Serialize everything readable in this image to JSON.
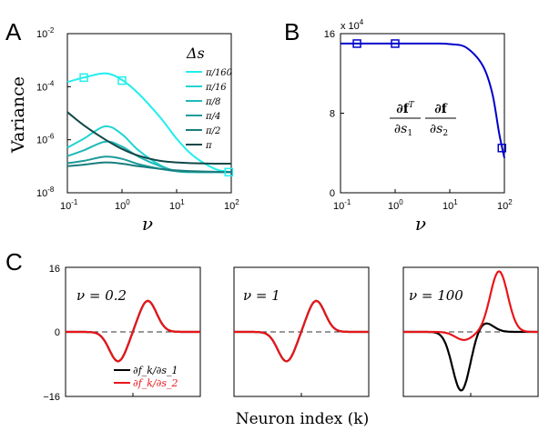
{
  "panel_labels": [
    "A",
    "B",
    "C"
  ],
  "panelA": {
    "ylabel": "Variance",
    "xlabel": "ν",
    "legend_title": "Δs",
    "legend": [
      "π/160",
      "π/16",
      "π/8",
      "π/4",
      "π/2",
      "π"
    ],
    "x_ticks": [
      {
        "base": "10",
        "exp": "-1"
      },
      {
        "base": "10",
        "exp": "0"
      },
      {
        "base": "10",
        "exp": "1"
      },
      {
        "base": "10",
        "exp": "2"
      }
    ],
    "y_ticks": [
      {
        "base": "10",
        "exp": "-8"
      },
      {
        "base": "10",
        "exp": "-6"
      },
      {
        "base": "10",
        "exp": "-4"
      },
      {
        "base": "10",
        "exp": "-2"
      }
    ]
  },
  "panelB": {
    "xlabel": "ν",
    "scale_base": "x 10",
    "scale_exp": "4",
    "y_ticks": [
      "0",
      "8",
      "16"
    ],
    "x_ticks": [
      {
        "base": "10",
        "exp": "-1"
      },
      {
        "base": "10",
        "exp": "0"
      },
      {
        "base": "10",
        "exp": "1"
      },
      {
        "base": "10",
        "exp": "2"
      }
    ],
    "annotation": {
      "num1_bold": "∂f",
      "num1_sup": "T",
      "den1": "∂s",
      "den1_sub": "1",
      "num2_bold": "∂f",
      "den2": "∂s",
      "den2_sub": "2"
    }
  },
  "panelC": {
    "xlabel": "Neuron index (k)",
    "y_ticks": [
      "16",
      "0",
      "−16"
    ],
    "subplot_labels": [
      "ν = 0.2",
      "ν = 1",
      "ν = 100"
    ],
    "legend": [
      "∂f_k/∂s_1",
      "∂f_k/∂s_2"
    ]
  },
  "colors": {
    "cyan_ramp": [
      "#22eeee",
      "#22d3d3",
      "#20b8b8",
      "#1e9a9a",
      "#1a7d7d",
      "#104848"
    ],
    "blue": "#0000cc",
    "black": "#000000",
    "red": "#e8161a"
  },
  "chart_data": [
    {
      "panel": "A",
      "type": "line",
      "x_scale": "log",
      "y_scale": "log",
      "xlim": [
        0.1,
        100
      ],
      "ylim": [
        1e-08,
        0.01
      ],
      "x": [
        0.1,
        0.2,
        0.5,
        1,
        2,
        5,
        10,
        20,
        50,
        100
      ],
      "series": [
        {
          "name": "π/160",
          "values": [
            0.00015,
            0.00022,
            0.00032,
            0.00018,
            5.5e-05,
            7e-06,
            1.1e-06,
            2.5e-07,
            8e-08,
            6e-08
          ]
        },
        {
          "name": "π/16",
          "values": [
            5e-07,
            1.1e-06,
            3.2e-06,
            1.6e-06,
            4e-07,
            1.1e-07,
            6.5e-08,
            6e-08,
            6e-08,
            6e-08
          ]
        },
        {
          "name": "π/8",
          "values": [
            2.4e-07,
            4e-07,
            8.5e-07,
            5.5e-07,
            2.3e-07,
            1e-07,
            6.5e-08,
            6e-08,
            6e-08,
            6e-08
          ]
        },
        {
          "name": "π/4",
          "values": [
            1.3e-07,
            1.6e-07,
            2.3e-07,
            1.9e-07,
            1.2e-07,
            8e-08,
            6.5e-08,
            6.2e-08,
            6e-08,
            6e-08
          ]
        },
        {
          "name": "π/2",
          "values": [
            1e-07,
            1.15e-07,
            1.4e-07,
            1.25e-07,
            1e-07,
            8e-08,
            7e-08,
            6.5e-08,
            6.2e-08,
            6e-08
          ]
        },
        {
          "name": "π",
          "values": [
            1.1e-05,
            3.5e-06,
            1e-06,
            4.5e-07,
            2.5e-07,
            1.6e-07,
            1.4e-07,
            1.3e-07,
            1.25e-07,
            1.25e-07
          ]
        }
      ],
      "markers": [
        {
          "x": 0.2,
          "y": 0.00022
        },
        {
          "x": 1,
          "y": 0.00017
        },
        {
          "x": 90,
          "y": 6e-08
        }
      ]
    },
    {
      "panel": "B",
      "type": "line",
      "x_scale": "log",
      "xlim": [
        0.1,
        100
      ],
      "ylim": [
        0,
        160000
      ],
      "x": [
        0.1,
        0.2,
        0.5,
        1,
        2,
        5,
        10,
        20,
        40,
        60,
        80,
        100
      ],
      "values": [
        150000,
        150000,
        150000,
        150000,
        150000,
        150000,
        149500,
        146000,
        128000,
        100000,
        60000,
        35000
      ],
      "markers": [
        {
          "x": 0.2,
          "y": 150000
        },
        {
          "x": 1,
          "y": 150000
        },
        {
          "x": 90,
          "y": 45000
        }
      ]
    },
    {
      "panel": "C",
      "type": "line",
      "ylim": [
        -16,
        16
      ],
      "subplots": [
        {
          "label": "ν = 0.2",
          "series": [
            {
              "name": "∂f_k/∂s_1",
              "peaks": [
                {
                  "pos": 0.39,
                  "amp": -7.3
                },
                {
                  "pos": 0.61,
                  "amp": 7.7
                }
              ]
            },
            {
              "name": "∂f_k/∂s_2",
              "peaks": [
                {
                  "pos": 0.39,
                  "amp": -7.3
                },
                {
                  "pos": 0.61,
                  "amp": 7.7
                }
              ]
            }
          ]
        },
        {
          "label": "ν = 1",
          "series": [
            {
              "name": "∂f_k/∂s_1",
              "peaks": [
                {
                  "pos": 0.39,
                  "amp": -7.3
                },
                {
                  "pos": 0.61,
                  "amp": 7.7
                }
              ]
            },
            {
              "name": "∂f_k/∂s_2",
              "peaks": [
                {
                  "pos": 0.39,
                  "amp": -7.3
                },
                {
                  "pos": 0.61,
                  "amp": 7.7
                }
              ]
            }
          ]
        },
        {
          "label": "ν = 100",
          "series": [
            {
              "name": "∂f_k/∂s_1",
              "peaks": [
                {
                  "pos": 0.43,
                  "amp": -14.6
                },
                {
                  "pos": 0.6,
                  "amp": 2.4
                }
              ]
            },
            {
              "name": "∂f_k/∂s_2",
              "peaks": [
                {
                  "pos": 0.45,
                  "amp": -2
                },
                {
                  "pos": 0.71,
                  "amp": 15
                }
              ]
            }
          ]
        }
      ]
    }
  ]
}
